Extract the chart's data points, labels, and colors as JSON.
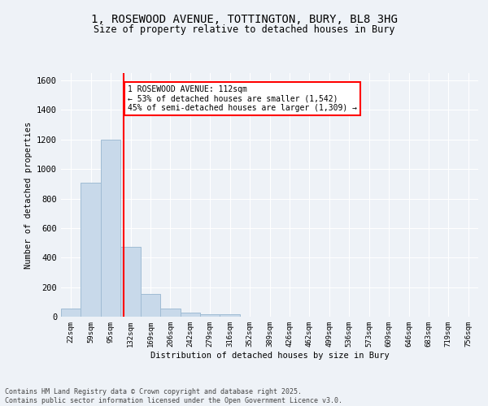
{
  "title_line1": "1, ROSEWOOD AVENUE, TOTTINGTON, BURY, BL8 3HG",
  "title_line2": "Size of property relative to detached houses in Bury",
  "xlabel": "Distribution of detached houses by size in Bury",
  "ylabel": "Number of detached properties",
  "bar_color": "#c8d9ea",
  "bar_edge_color": "#a0bcd4",
  "bin_labels": [
    "22sqm",
    "59sqm",
    "95sqm",
    "132sqm",
    "169sqm",
    "206sqm",
    "242sqm",
    "279sqm",
    "316sqm",
    "352sqm",
    "389sqm",
    "426sqm",
    "462sqm",
    "499sqm",
    "536sqm",
    "573sqm",
    "609sqm",
    "646sqm",
    "683sqm",
    "719sqm",
    "756sqm"
  ],
  "bar_heights": [
    55,
    910,
    1200,
    475,
    155,
    55,
    28,
    15,
    15,
    0,
    0,
    0,
    0,
    0,
    0,
    0,
    0,
    0,
    0,
    0,
    0
  ],
  "red_line_x": 2.65,
  "annotation_text": "1 ROSEWOOD AVENUE: 112sqm\n← 53% of detached houses are smaller (1,542)\n45% of semi-detached houses are larger (1,309) →",
  "annotation_box_color": "white",
  "annotation_box_edge_color": "red",
  "ylim": [
    0,
    1650
  ],
  "yticks": [
    0,
    200,
    400,
    600,
    800,
    1000,
    1200,
    1400,
    1600
  ],
  "footer_text": "Contains HM Land Registry data © Crown copyright and database right 2025.\nContains public sector information licensed under the Open Government Licence v3.0.",
  "bg_color": "#eef2f7",
  "plot_bg_color": "#eef2f7",
  "title_fontsize": 10,
  "subtitle_fontsize": 8.5
}
